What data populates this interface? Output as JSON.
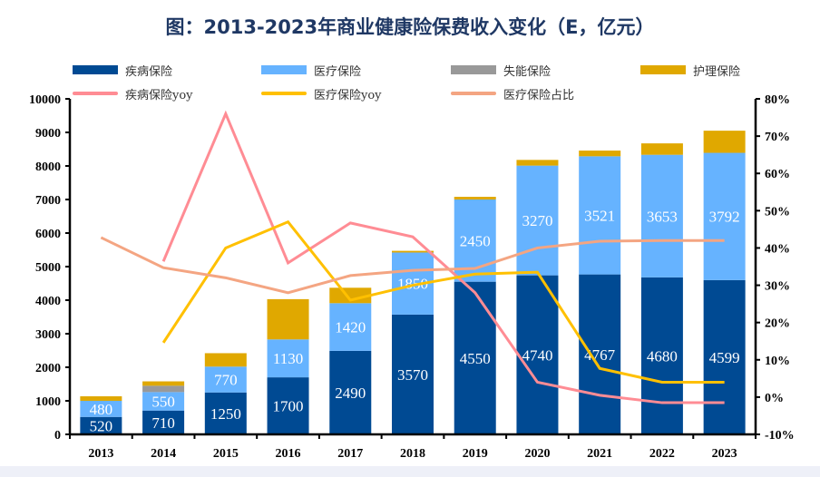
{
  "chart_data": {
    "type": "bar",
    "subtype": "stacked-bar-with-lines",
    "title": "图：2013-2023年商业健康险保费收入变化（E，亿元）",
    "categories": [
      "2013",
      "2014",
      "2015",
      "2016",
      "2017",
      "2018",
      "2019",
      "2020",
      "2021",
      "2022",
      "2023"
    ],
    "left_axis": {
      "label": "",
      "ylim": [
        0,
        10000
      ],
      "ticks": [
        0,
        1000,
        2000,
        3000,
        4000,
        5000,
        6000,
        7000,
        8000,
        9000,
        10000
      ]
    },
    "right_axis": {
      "label": "",
      "ylim": [
        -10,
        80
      ],
      "ticks": [
        -10,
        0,
        10,
        20,
        30,
        40,
        50,
        60,
        70,
        80
      ],
      "tick_suffix": "%"
    },
    "grid": false,
    "legend_position": "top",
    "bar_series": [
      {
        "name": "疾病保险",
        "color": "#004a93",
        "label_color": "#ffffff",
        "values": [
          520,
          710,
          1250,
          1700,
          2490,
          3570,
          4550,
          4740,
          4767,
          4680,
          4599
        ],
        "labels": [
          "520",
          "710",
          "1250",
          "1700",
          "2490",
          "3570",
          "4550",
          "4740",
          "4767",
          "4680",
          "4599"
        ]
      },
      {
        "name": "医疗保险",
        "color": "#66b3ff",
        "label_color": "#ffffff",
        "values": [
          480,
          550,
          770,
          1130,
          1420,
          1850,
          2450,
          3270,
          3521,
          3653,
          3792
        ],
        "labels": [
          "480",
          "550",
          "770",
          "1130",
          "1420",
          "1850",
          "2450",
          "3270",
          "3521",
          "3653",
          "3792"
        ]
      },
      {
        "name": "失能保险",
        "color": "#999999",
        "values": [
          0,
          190,
          0,
          0,
          0,
          0,
          0,
          0,
          0,
          0,
          0
        ],
        "labels": []
      },
      {
        "name": "护理保险",
        "color": "#e0a800",
        "values": [
          135,
          130,
          400,
          1200,
          460,
          50,
          80,
          170,
          170,
          340,
          660
        ],
        "labels": []
      }
    ],
    "line_series": [
      {
        "name": "疾病保险yoy",
        "color": "#ff8c94",
        "axis": "right",
        "values": [
          null,
          36.4,
          76.0,
          36.0,
          46.7,
          43.0,
          28.0,
          4.0,
          0.5,
          -1.5,
          -1.5
        ]
      },
      {
        "name": "医疗保险yoy",
        "color": "#ffc000",
        "axis": "right",
        "values": [
          null,
          14.6,
          40.0,
          47.0,
          26.0,
          30.0,
          33.0,
          33.5,
          7.7,
          4.0,
          4.0
        ]
      },
      {
        "name": "医疗保险占比",
        "color": "#f4a582",
        "axis": "right",
        "values": [
          42.8,
          34.7,
          32.0,
          28.0,
          32.6,
          34.0,
          34.5,
          40.0,
          41.8,
          42.0,
          42.0
        ]
      }
    ]
  },
  "legend": [
    {
      "name": "疾病保险",
      "kind": "bar",
      "color": "#004a93"
    },
    {
      "name": "医疗保险",
      "kind": "bar",
      "color": "#66b3ff"
    },
    {
      "name": "失能保险",
      "kind": "bar",
      "color": "#999999"
    },
    {
      "name": "护理保险",
      "kind": "bar",
      "color": "#e0a800"
    },
    {
      "name": "疾病保险yoy",
      "kind": "line",
      "color": "#ff8c94"
    },
    {
      "name": "医疗保险yoy",
      "kind": "line",
      "color": "#ffc000"
    },
    {
      "name": "医疗保险占比",
      "kind": "line",
      "color": "#f4a582"
    }
  ]
}
